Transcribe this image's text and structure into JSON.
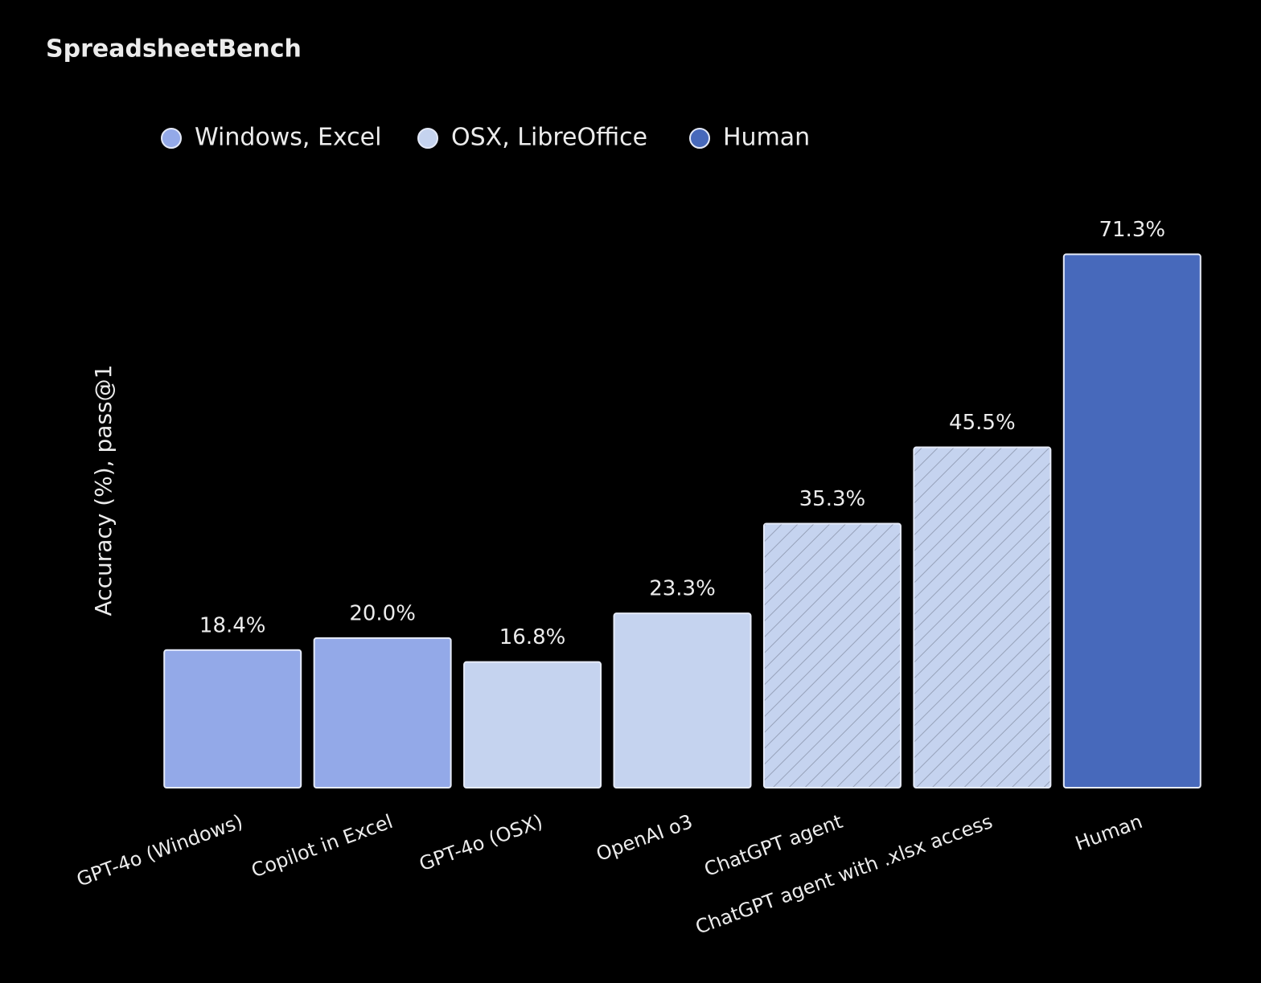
{
  "chart_data": {
    "type": "bar",
    "title": "SpreadsheetBench",
    "y_label": "Accuracy (%), pass@1",
    "categories": [
      "GPT-4o (Windows)",
      "Copilot in Excel",
      "GPT-4o (OSX)",
      "OpenAI o3",
      "ChatGPT agent",
      "ChatGPT agent with .xlsx access",
      "Human"
    ],
    "series": [
      {
        "name": "Windows, Excel",
        "color": "#93a9e8",
        "values": [
          18.4,
          20.0,
          null,
          null,
          null,
          null,
          null
        ],
        "value_labels": [
          "18.4%",
          "20.0%",
          null,
          null,
          null,
          null,
          null
        ]
      },
      {
        "name": "OSX, LibreOffice",
        "color": "#c5d3ef",
        "values": [
          null,
          null,
          16.8,
          23.3,
          35.3,
          45.5,
          null
        ],
        "value_labels": [
          null,
          null,
          "16.8%",
          "23.3%",
          "35.3%",
          "45.5%",
          null
        ]
      },
      {
        "name": "Human",
        "color": "#4769bb",
        "values": [
          null,
          null,
          null,
          null,
          null,
          null,
          71.3
        ],
        "value_labels": [
          null,
          null,
          null,
          null,
          null,
          null,
          "71.3%"
        ]
      }
    ],
    "hatch": [
      false,
      false,
      false,
      false,
      true,
      true,
      false
    ],
    "ylim": [
      0,
      75
    ],
    "grid": false
  }
}
